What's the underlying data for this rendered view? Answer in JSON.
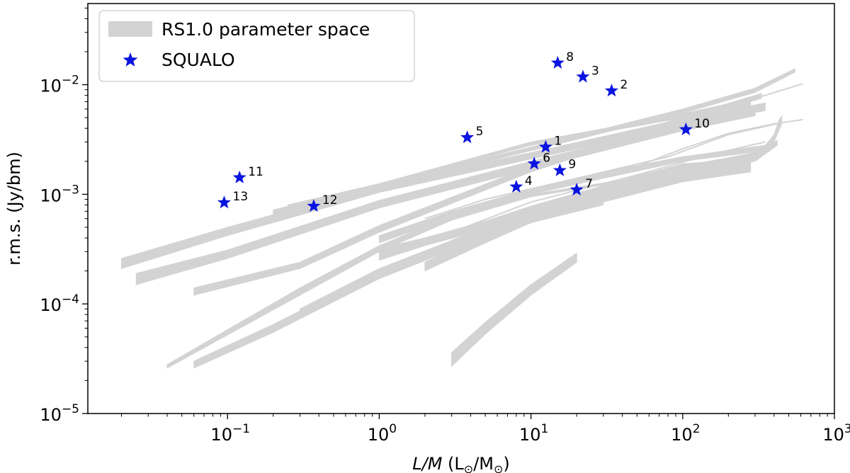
{
  "chart_data": {
    "type": "scatter",
    "xlabel_parts": [
      "L/M",
      " (L",
      "⊙",
      "/M",
      "⊙",
      ")"
    ],
    "ylabel": "r.m.s. (Jy/bm)",
    "xscale": "log",
    "yscale": "log",
    "xlim": [
      0.012,
      1000
    ],
    "ylim": [
      1e-05,
      0.055
    ],
    "x_ticks": [
      {
        "value": 0.1,
        "base": "10",
        "exp": "−1"
      },
      {
        "value": 1,
        "base": "10",
        "exp": "0"
      },
      {
        "value": 10,
        "base": "10",
        "exp": "1"
      },
      {
        "value": 100,
        "base": "10",
        "exp": "2"
      },
      {
        "value": 1000,
        "base": "10",
        "exp": "3"
      }
    ],
    "y_ticks": [
      {
        "value": 1e-05,
        "base": "10",
        "exp": "−5"
      },
      {
        "value": 0.0001,
        "base": "10",
        "exp": "−4"
      },
      {
        "value": 0.001,
        "base": "10",
        "exp": "−3"
      },
      {
        "value": 0.01,
        "base": "10",
        "exp": "−2"
      }
    ],
    "legend": {
      "placement": "top-left",
      "entries": [
        {
          "label": "RS1.0 parameter space",
          "kind": "band",
          "color": "#d3d3d3"
        },
        {
          "label": "SQUALO",
          "kind": "star",
          "color": "#0a14e0"
        }
      ]
    },
    "series": [
      {
        "name": "SQUALO",
        "color": "#0a14e0",
        "marker": "star",
        "points": [
          {
            "label": "1",
            "x": 12.5,
            "y": 0.0027
          },
          {
            "label": "2",
            "x": 34,
            "y": 0.0088
          },
          {
            "label": "3",
            "x": 22,
            "y": 0.0118
          },
          {
            "label": "4",
            "x": 8,
            "y": 0.00117
          },
          {
            "label": "5",
            "x": 3.8,
            "y": 0.0033
          },
          {
            "label": "6",
            "x": 10.5,
            "y": 0.0019
          },
          {
            "label": "7",
            "x": 20,
            "y": 0.0011
          },
          {
            "label": "8",
            "x": 15,
            "y": 0.0158
          },
          {
            "label": "9",
            "x": 15.5,
            "y": 0.00165
          },
          {
            "label": "10",
            "x": 105,
            "y": 0.0039
          },
          {
            "label": "11",
            "x": 0.12,
            "y": 0.00142
          },
          {
            "label": "12",
            "x": 0.37,
            "y": 0.00078
          },
          {
            "label": "13",
            "x": 0.095,
            "y": 0.00084
          }
        ]
      },
      {
        "name": "RS1.0 parameter space",
        "color": "#d3d3d3",
        "kind": "bands",
        "bands": [
          {
            "x": [
              0.02,
              0.1,
              1,
              10,
              100,
              350
            ],
            "y_low": [
              0.00021,
              0.00042,
              0.00104,
              0.0021,
              0.0042,
              0.0058
            ],
            "y_high": [
              0.00026,
              0.0005,
              0.0012,
              0.0024,
              0.0049,
              0.0068
            ]
          },
          {
            "x": [
              0.025,
              0.1,
              1,
              10,
              100,
              300
            ],
            "y_low": [
              0.00015,
              0.00026,
              0.00075,
              0.0017,
              0.0038,
              0.0052
            ],
            "y_high": [
              0.00019,
              0.00031,
              0.00088,
              0.002,
              0.0044,
              0.006
            ]
          },
          {
            "x": [
              0.06,
              0.3,
              1,
              10,
              100,
              330
            ],
            "y_low": [
              0.00012,
              0.00021,
              0.00045,
              0.0016,
              0.0045,
              0.0075
            ],
            "y_high": [
              0.00014,
              0.00024,
              0.00052,
              0.0018,
              0.0051,
              0.0083
            ]
          },
          {
            "x": [
              0.2,
              1,
              10,
              100,
              300,
              550
            ],
            "y_low": [
              0.00065,
              0.00113,
              0.0025,
              0.0055,
              0.0085,
              0.013
            ],
            "y_high": [
              0.00072,
              0.00125,
              0.0027,
              0.006,
              0.0093,
              0.014
            ]
          },
          {
            "x": [
              0.25,
              1,
              3,
              10,
              100,
              280
            ],
            "y_low": [
              0.00075,
              0.00118,
              0.0018,
              0.0028,
              0.005,
              0.0065
            ],
            "y_high": [
              0.0008,
              0.00125,
              0.0019,
              0.003,
              0.0054,
              0.007
            ]
          },
          {
            "x": [
              0.04,
              0.3,
              1,
              3,
              10,
              40
            ],
            "y_low": [
              2.6e-05,
              0.00012,
              0.0003,
              0.00058,
              0.00095,
              0.0013
            ],
            "y_high": [
              2.8e-05,
              0.00014,
              0.00034,
              0.00064,
              0.001,
              0.00135
            ]
          },
          {
            "x": [
              0.06,
              0.2,
              1,
              3,
              10,
              30
            ],
            "y_low": [
              2.6e-05,
              5.5e-05,
              0.00017,
              0.00031,
              0.00055,
              0.0008
            ],
            "y_high": [
              3e-05,
              6.5e-05,
              0.0002,
              0.00036,
              0.0006,
              0.00085
            ]
          },
          {
            "x": [
              0.3,
              1,
              3,
              10,
              30,
              60
            ],
            "y_low": [
              8e-05,
              0.00017,
              0.00032,
              0.00065,
              0.00105,
              0.0014
            ],
            "y_high": [
              9e-05,
              0.00021,
              0.00038,
              0.00075,
              0.0012,
              0.0016
            ]
          },
          {
            "x": [
              1,
              2,
              5,
              10,
              30,
              100,
              280
            ],
            "y_low": [
              0.00025,
              0.00034,
              0.00048,
              0.00064,
              0.00095,
              0.0014,
              0.0017
            ],
            "y_high": [
              0.00032,
              0.0004,
              0.00057,
              0.00078,
              0.0012,
              0.0019,
              0.0021
            ]
          },
          {
            "x": [
              2,
              5,
              10,
              30,
              100,
              280
            ],
            "y_low": [
              0.0002,
              0.00036,
              0.00055,
              0.00085,
              0.0013,
              0.0016
            ],
            "y_high": [
              0.00024,
              0.00043,
              0.00068,
              0.001,
              0.0016,
              0.0019
            ]
          },
          {
            "x": [
              1,
              3,
              10,
              30,
              100,
              350
            ],
            "y_low": [
              0.00036,
              0.00062,
              0.001,
              0.0014,
              0.002,
              0.0025
            ],
            "y_high": [
              0.00042,
              0.0007,
              0.00112,
              0.0016,
              0.0022,
              0.0028
            ]
          },
          {
            "x": [
              3,
              5,
              10,
              20
            ],
            "y_low": [
              2.7e-05,
              5.3e-05,
              0.00012,
              0.00024
            ],
            "y_high": [
              3.6e-05,
              6.8e-05,
              0.00015,
              0.00029
            ]
          },
          {
            "x": [
              10,
              30,
              100,
              300,
              420
            ],
            "y_low": [
              0.00065,
              0.001,
              0.0015,
              0.002,
              0.0028
            ],
            "y_high": [
              0.00075,
              0.0012,
              0.0018,
              0.0024,
              0.0031
            ]
          },
          {
            "x": [
              350,
              400,
              430,
              450
            ],
            "y_low": [
              0.0024,
              0.003,
              0.0038,
              0.0044
            ],
            "y_high": [
              0.0028,
              0.0035,
              0.0047,
              0.0052
            ]
          }
        ],
        "lines": [
          {
            "x": [
              0.25,
              1,
              10,
              100,
              300,
              620
            ],
            "y": [
              0.00073,
              0.00122,
              0.0026,
              0.0054,
              0.0075,
              0.0102
            ]
          },
          {
            "x": [
              50,
              100,
              200,
              400,
              620
            ],
            "y": [
              0.0018,
              0.0026,
              0.0036,
              0.0044,
              0.0048
            ]
          },
          {
            "x": [
              1.5,
              3,
              10,
              50,
              150,
              350
            ],
            "y": [
              0.0003,
              0.00045,
              0.00085,
              0.0015,
              0.0023,
              0.003
            ]
          },
          {
            "x": [
              2,
              5,
              20,
              80,
              200,
              450
            ],
            "y": [
              0.0006,
              0.0009,
              0.0014,
              0.0022,
              0.0035,
              0.0045
            ]
          }
        ]
      }
    ]
  }
}
